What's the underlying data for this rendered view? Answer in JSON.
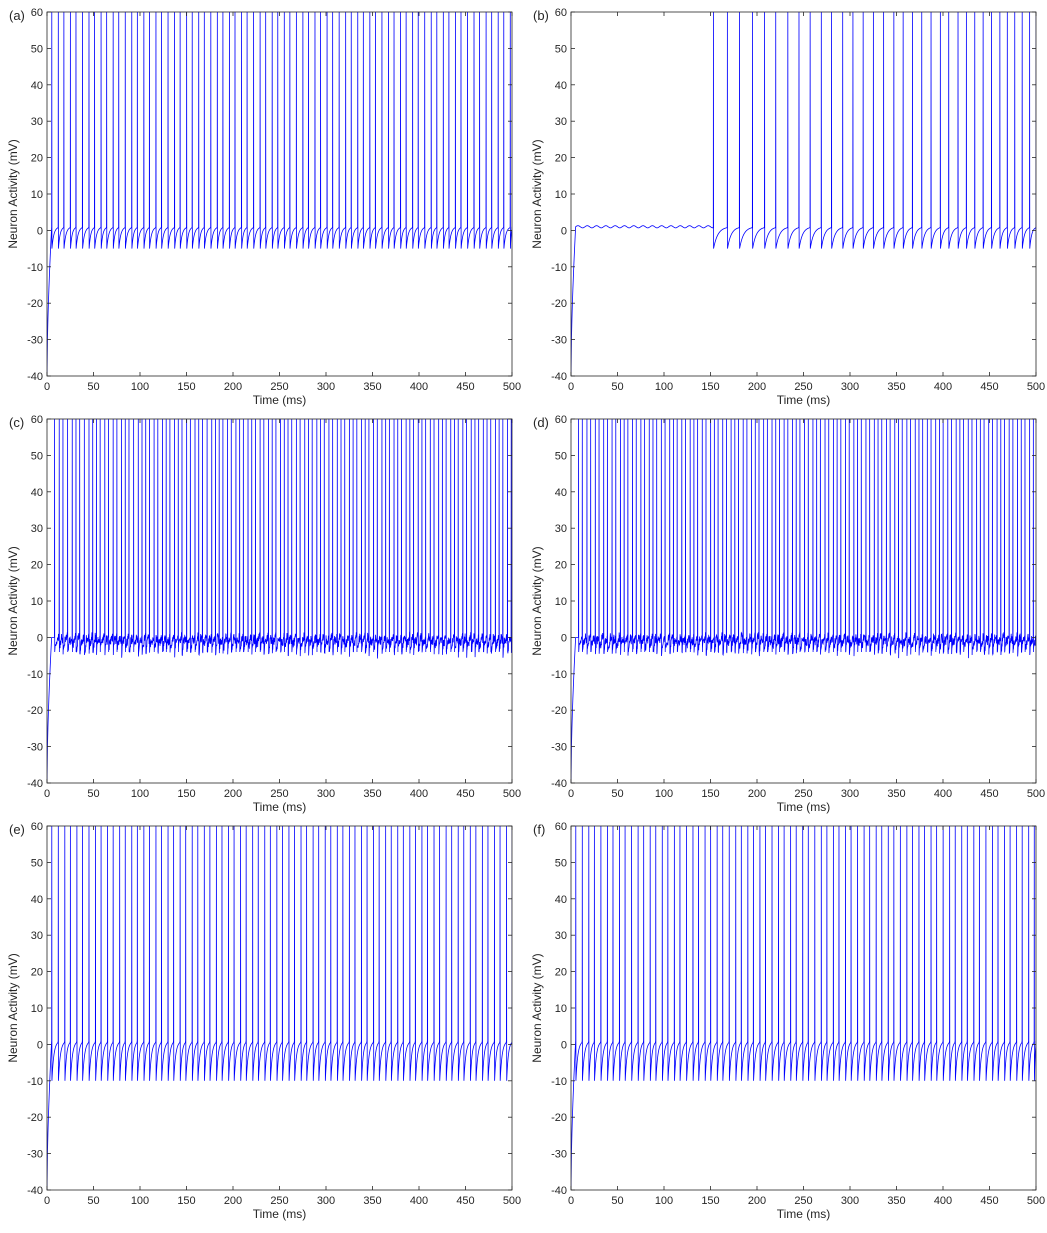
{
  "figure": {
    "panel_labels": [
      "(a)",
      "(b)",
      "(c)",
      "(d)",
      "(e)",
      "(f)"
    ]
  },
  "colors": {
    "trace": "#0000ff",
    "axis": "#262626",
    "background": "#ffffff"
  },
  "chart_data": [
    {
      "panel": "(a)",
      "type": "line",
      "xlabel": "Time (ms)",
      "ylabel": "Neuron Activity (mV)",
      "xlim": [
        0,
        500
      ],
      "ylim": [
        -40,
        60
      ],
      "xticks": [
        0,
        50,
        100,
        150,
        200,
        250,
        300,
        350,
        400,
        450,
        500
      ],
      "yticks": [
        -40,
        -30,
        -20,
        -10,
        0,
        10,
        20,
        30,
        40,
        50,
        60
      ],
      "grid": false,
      "series": [
        {
          "initial_mV": -40,
          "baseline_mV": 1,
          "trough_mV": -5,
          "peak_mV": 60,
          "noisy_baseline": false,
          "spike_times_ms": [
            5,
            12,
            18,
            25,
            31,
            38,
            45,
            51,
            58,
            64,
            71,
            77,
            84,
            91,
            97,
            104,
            110,
            117,
            123,
            130,
            137,
            143,
            150,
            156,
            163,
            169,
            176,
            183,
            189,
            196,
            202,
            209,
            215,
            222,
            229,
            235,
            242,
            248,
            255,
            261,
            268,
            275,
            281,
            288,
            294,
            301,
            307,
            314,
            321,
            327,
            334,
            340,
            347,
            353,
            360,
            367,
            373,
            380,
            386,
            393,
            399,
            406,
            413,
            419,
            426,
            432,
            439,
            445,
            452,
            459,
            465,
            472,
            478,
            485,
            491,
            498
          ]
        }
      ]
    },
    {
      "panel": "(b)",
      "type": "line",
      "xlabel": "Time (ms)",
      "ylabel": "Neuron Activity (mV)",
      "xlim": [
        0,
        500
      ],
      "ylim": [
        -40,
        60
      ],
      "xticks": [
        0,
        50,
        100,
        150,
        200,
        250,
        300,
        350,
        400,
        450,
        500
      ],
      "yticks": [
        -40,
        -30,
        -20,
        -10,
        0,
        10,
        20,
        30,
        40,
        50,
        60
      ],
      "grid": false,
      "series": [
        {
          "initial_mV": -40,
          "baseline_mV": 1,
          "trough_mV": -5,
          "peak_mV": 60,
          "noisy_baseline": false,
          "subthreshold_oscillation": {
            "start_ms": 5,
            "end_ms": 153,
            "amplitude_mV": 0.3,
            "period_ms": 10
          },
          "spike_times_ms": [
            153,
            168,
            181,
            195,
            208,
            220,
            233,
            245,
            257,
            269,
            280,
            292,
            303,
            314,
            325,
            336,
            347,
            357,
            367,
            377,
            387,
            397,
            406,
            416,
            425,
            434,
            443,
            452,
            461,
            469,
            477,
            485,
            493,
            500
          ]
        }
      ]
    },
    {
      "panel": "(c)",
      "type": "line",
      "xlabel": "Time (ms)",
      "ylabel": "Neuron Activity (mV)",
      "xlim": [
        0,
        500
      ],
      "ylim": [
        -40,
        60
      ],
      "xticks": [
        0,
        50,
        100,
        150,
        200,
        250,
        300,
        350,
        400,
        450,
        500
      ],
      "yticks": [
        -40,
        -30,
        -20,
        -10,
        0,
        10,
        20,
        30,
        40,
        50,
        60
      ],
      "grid": false,
      "series": [
        {
          "initial_mV": -40,
          "baseline_mV": 0,
          "trough_mV": -4,
          "peak_mV": 60,
          "noisy_baseline": true,
          "spike_times_ms": [
            8,
            13,
            17,
            22,
            27,
            31,
            35,
            40,
            45,
            49,
            53,
            57,
            62,
            66,
            71,
            75,
            80,
            84,
            88,
            93,
            98,
            102,
            106,
            110,
            115,
            119,
            124,
            128,
            132,
            137,
            141,
            145,
            150,
            154,
            159,
            163,
            167,
            172,
            177,
            181,
            185,
            189,
            194,
            198,
            203,
            207,
            211,
            216,
            220,
            224,
            229,
            233,
            238,
            242,
            246,
            251,
            255,
            259,
            263,
            268,
            272,
            277,
            281,
            285,
            290,
            294,
            298,
            303,
            307,
            312,
            316,
            320,
            325,
            329,
            333,
            338,
            342,
            346,
            351,
            355,
            360,
            364,
            368,
            373,
            377,
            381,
            386,
            390,
            394,
            399,
            403,
            407,
            412,
            416,
            421,
            425,
            429,
            434,
            438,
            442,
            447,
            451,
            456,
            460,
            464,
            469,
            473,
            477,
            482,
            486,
            490,
            495,
            499
          ]
        }
      ]
    },
    {
      "panel": "(d)",
      "type": "line",
      "xlabel": "Time (ms)",
      "ylabel": "Neuron Activity (mV)",
      "xlim": [
        0,
        500
      ],
      "ylim": [
        -40,
        60
      ],
      "xticks": [
        0,
        50,
        100,
        150,
        200,
        250,
        300,
        350,
        400,
        450,
        500
      ],
      "yticks": [
        -40,
        -30,
        -20,
        -10,
        0,
        10,
        20,
        30,
        40,
        50,
        60
      ],
      "grid": false,
      "series": [
        {
          "initial_mV": -40,
          "baseline_mV": 0,
          "trough_mV": -4,
          "peak_mV": 60,
          "noisy_baseline": true,
          "spike_times_ms": [
            8,
            12,
            17,
            21,
            26,
            30,
            35,
            39,
            44,
            48,
            53,
            57,
            61,
            66,
            70,
            75,
            79,
            84,
            88,
            92,
            97,
            101,
            106,
            110,
            114,
            119,
            123,
            128,
            132,
            136,
            141,
            145,
            150,
            154,
            158,
            163,
            167,
            172,
            176,
            180,
            185,
            189,
            194,
            198,
            202,
            207,
            211,
            216,
            220,
            224,
            229,
            233,
            238,
            242,
            246,
            251,
            255,
            260,
            264,
            268,
            273,
            277,
            282,
            286,
            290,
            295,
            299,
            304,
            308,
            312,
            317,
            321,
            326,
            330,
            334,
            339,
            343,
            348,
            352,
            356,
            361,
            365,
            370,
            374,
            378,
            383,
            387,
            392,
            396,
            400,
            405,
            409,
            414,
            418,
            422,
            427,
            431,
            436,
            440,
            444,
            449,
            453,
            458,
            462,
            466,
            471,
            475,
            480,
            484,
            488,
            493,
            497
          ]
        }
      ]
    },
    {
      "panel": "(e)",
      "type": "line",
      "xlabel": "Time (ms)",
      "ylabel": "Neuron Activity (mV)",
      "xlim": [
        0,
        500
      ],
      "ylim": [
        -40,
        60
      ],
      "xticks": [
        0,
        50,
        100,
        150,
        200,
        250,
        300,
        350,
        400,
        450,
        500
      ],
      "yticks": [
        -40,
        -30,
        -20,
        -10,
        0,
        10,
        20,
        30,
        40,
        50,
        60
      ],
      "grid": false,
      "series": [
        {
          "initial_mV": -40,
          "baseline_mV": 1,
          "trough_mV": -10,
          "peak_mV": 60,
          "noisy_baseline": false,
          "spike_times_ms": [
            5,
            12,
            19,
            25,
            32,
            38,
            45,
            52,
            58,
            65,
            71,
            78,
            84,
            91,
            97,
            104,
            110,
            117,
            123,
            130,
            136,
            143,
            149,
            156,
            162,
            169,
            175,
            182,
            188,
            195,
            201,
            208,
            214,
            221,
            227,
            234,
            240,
            247,
            253,
            260,
            266,
            273,
            279,
            286,
            292,
            299,
            305,
            312,
            318,
            325,
            331,
            338,
            344,
            351,
            357,
            364,
            370,
            377,
            383,
            390,
            396,
            403,
            409,
            416,
            422,
            429,
            435,
            442,
            448,
            455,
            461,
            468,
            474,
            481,
            487,
            494,
            500
          ]
        }
      ]
    },
    {
      "panel": "(f)",
      "type": "line",
      "xlabel": "Time (ms)",
      "ylabel": "Neuron Activity (mV)",
      "xlim": [
        0,
        500
      ],
      "ylim": [
        -40,
        60
      ],
      "xticks": [
        0,
        50,
        100,
        150,
        200,
        250,
        300,
        350,
        400,
        450,
        500
      ],
      "yticks": [
        -40,
        -30,
        -20,
        -10,
        0,
        10,
        20,
        30,
        40,
        50,
        60
      ],
      "grid": false,
      "series": [
        {
          "initial_mV": -40,
          "baseline_mV": 1,
          "trough_mV": -10,
          "peak_mV": 60,
          "noisy_baseline": false,
          "spike_times_ms": [
            5,
            12,
            19,
            25,
            32,
            39,
            45,
            52,
            58,
            65,
            72,
            78,
            85,
            91,
            98,
            104,
            111,
            117,
            124,
            131,
            137,
            144,
            150,
            157,
            163,
            170,
            177,
            183,
            190,
            196,
            203,
            209,
            216,
            223,
            229,
            236,
            242,
            249,
            255,
            262,
            269,
            275,
            282,
            288,
            295,
            301,
            308,
            315,
            321,
            328,
            334,
            341,
            347,
            354,
            361,
            367,
            374,
            380,
            387,
            393,
            400,
            407,
            413,
            420,
            426,
            433,
            439,
            446,
            453,
            459,
            466,
            472,
            479,
            485,
            492,
            498
          ]
        }
      ]
    }
  ]
}
